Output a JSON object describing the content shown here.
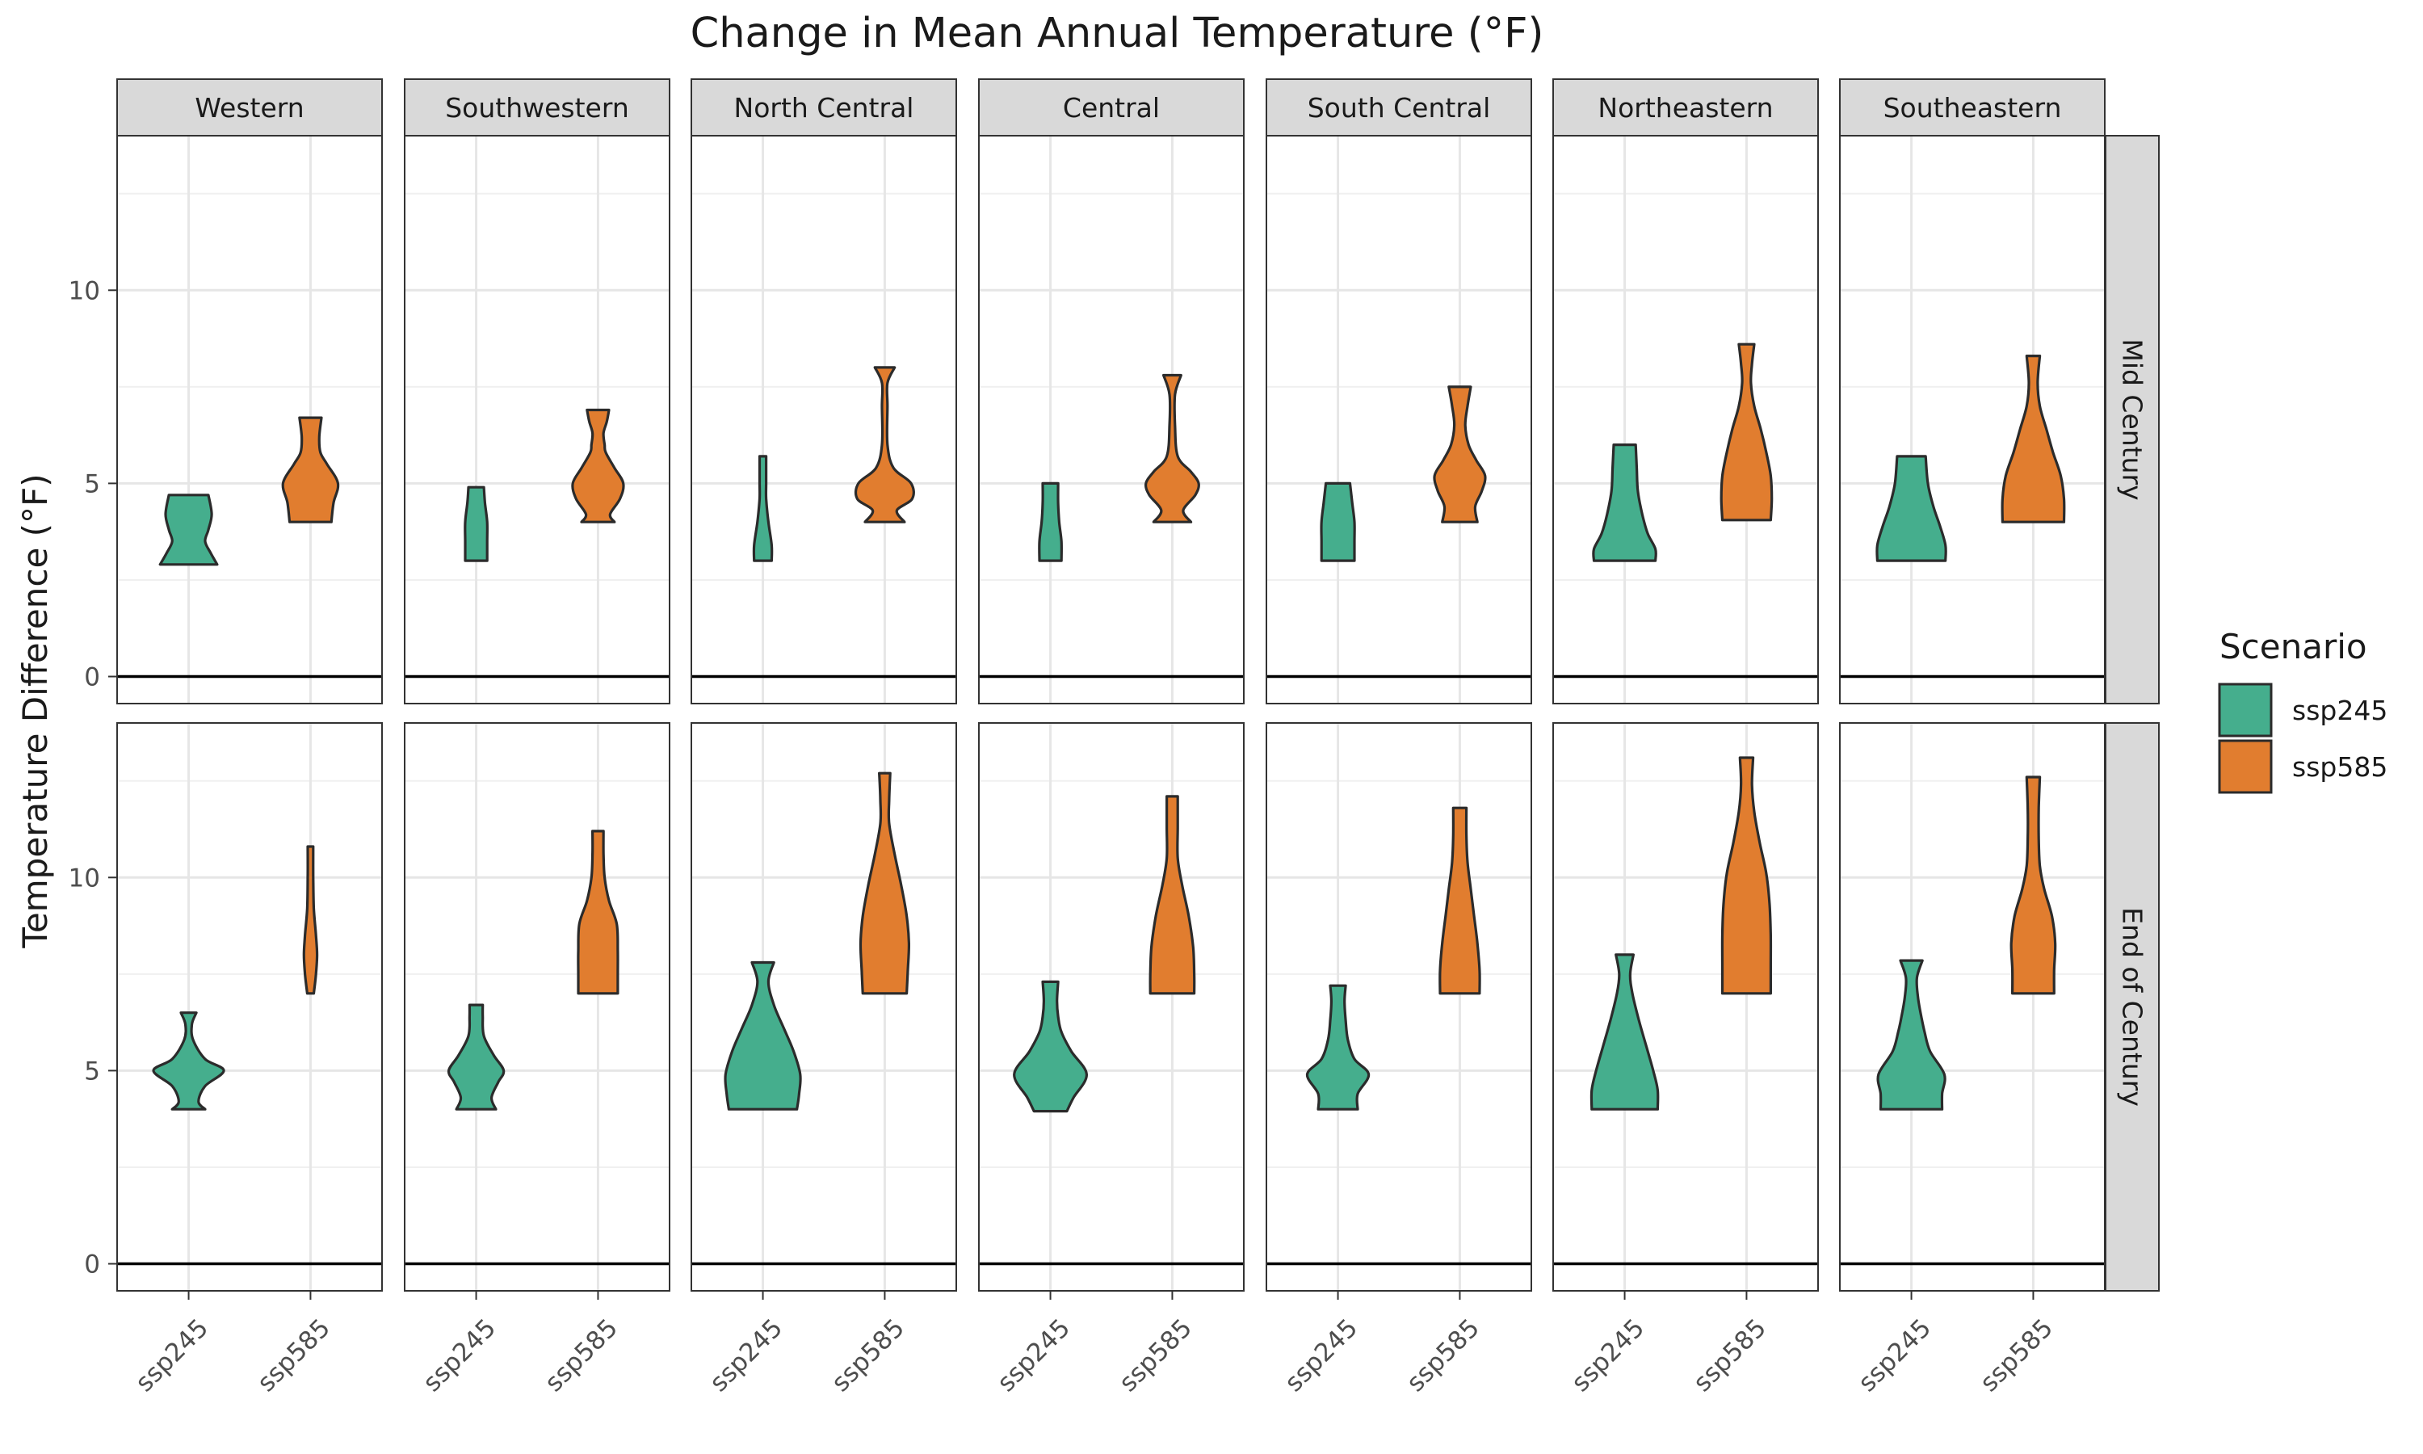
{
  "chart_data": {
    "type": "violin",
    "title": "Change in Mean Annual Temperature (°F)",
    "ylabel": "Temperature Difference (°F)",
    "xlabel": "",
    "ylim": [
      -0.7,
      14.0
    ],
    "yticks": [
      0,
      5,
      10
    ],
    "grid": true,
    "legend_placement": "right",
    "legend": {
      "title": "Scenario",
      "items": [
        {
          "label": "ssp245",
          "color": "#45ae8d"
        },
        {
          "label": "ssp585",
          "color": "#e17d2f"
        }
      ]
    },
    "x_categories": [
      "ssp245",
      "ssp585"
    ],
    "periods": [
      "Mid Century",
      "End of Century"
    ],
    "regions": [
      "Western",
      "Southwestern",
      "North Central",
      "Central",
      "South Central",
      "Northeastern",
      "Southeastern"
    ],
    "reference_line_y": 0,
    "series": [
      {
        "period": "Mid Century",
        "region": "Western",
        "ssp245": [
          [
            2.9,
            0.52
          ],
          [
            3.2,
            0.4
          ],
          [
            3.5,
            0.3
          ],
          [
            3.8,
            0.36
          ],
          [
            4.2,
            0.42
          ],
          [
            4.7,
            0.36
          ]
        ],
        "ssp585": [
          [
            4.0,
            0.38
          ],
          [
            4.5,
            0.42
          ],
          [
            5.0,
            0.5
          ],
          [
            5.5,
            0.3
          ],
          [
            5.8,
            0.18
          ],
          [
            6.2,
            0.16
          ],
          [
            6.7,
            0.2
          ]
        ]
      },
      {
        "period": "Mid Century",
        "region": "Southwestern",
        "ssp245": [
          [
            3.0,
            0.2
          ],
          [
            3.5,
            0.2
          ],
          [
            4.0,
            0.2
          ],
          [
            4.5,
            0.16
          ],
          [
            4.9,
            0.14
          ]
        ],
        "ssp585": [
          [
            4.0,
            0.3
          ],
          [
            4.2,
            0.22
          ],
          [
            4.6,
            0.4
          ],
          [
            5.0,
            0.46
          ],
          [
            5.4,
            0.3
          ],
          [
            5.8,
            0.14
          ],
          [
            6.0,
            0.12
          ],
          [
            6.3,
            0.1
          ],
          [
            6.6,
            0.16
          ],
          [
            6.9,
            0.2
          ]
        ]
      },
      {
        "period": "Mid Century",
        "region": "North Central",
        "ssp245": [
          [
            3.0,
            0.16
          ],
          [
            3.4,
            0.16
          ],
          [
            4.0,
            0.1
          ],
          [
            4.6,
            0.06
          ],
          [
            5.0,
            0.06
          ],
          [
            5.7,
            0.06
          ]
        ],
        "ssp585": [
          [
            4.0,
            0.36
          ],
          [
            4.3,
            0.22
          ],
          [
            4.6,
            0.5
          ],
          [
            5.0,
            0.48
          ],
          [
            5.4,
            0.16
          ],
          [
            6.0,
            0.05
          ],
          [
            7.0,
            0.05
          ],
          [
            7.6,
            0.05
          ],
          [
            8.0,
            0.18
          ]
        ]
      },
      {
        "period": "Mid Century",
        "region": "Central",
        "ssp245": [
          [
            3.0,
            0.2
          ],
          [
            3.5,
            0.2
          ],
          [
            4.0,
            0.16
          ],
          [
            4.5,
            0.14
          ],
          [
            5.0,
            0.14
          ]
        ],
        "ssp585": [
          [
            4.0,
            0.34
          ],
          [
            4.3,
            0.2
          ],
          [
            4.7,
            0.42
          ],
          [
            5.0,
            0.48
          ],
          [
            5.3,
            0.34
          ],
          [
            5.7,
            0.1
          ],
          [
            6.5,
            0.05
          ],
          [
            7.3,
            0.05
          ],
          [
            7.8,
            0.16
          ]
        ]
      },
      {
        "period": "Mid Century",
        "region": "South Central",
        "ssp245": [
          [
            3.0,
            0.3
          ],
          [
            3.5,
            0.3
          ],
          [
            4.0,
            0.3
          ],
          [
            4.5,
            0.26
          ],
          [
            5.0,
            0.22
          ]
        ],
        "ssp585": [
          [
            4.0,
            0.32
          ],
          [
            4.4,
            0.28
          ],
          [
            4.8,
            0.4
          ],
          [
            5.2,
            0.46
          ],
          [
            5.6,
            0.3
          ],
          [
            6.0,
            0.16
          ],
          [
            6.5,
            0.1
          ],
          [
            7.0,
            0.14
          ],
          [
            7.5,
            0.2
          ]
        ]
      },
      {
        "period": "Mid Century",
        "region": "Northeastern",
        "ssp245": [
          [
            3.0,
            0.56
          ],
          [
            3.3,
            0.56
          ],
          [
            3.7,
            0.42
          ],
          [
            4.2,
            0.32
          ],
          [
            4.8,
            0.24
          ],
          [
            5.4,
            0.22
          ],
          [
            6.0,
            0.2
          ]
        ],
        "ssp585": [
          [
            4.05,
            0.44
          ],
          [
            4.6,
            0.46
          ],
          [
            5.2,
            0.44
          ],
          [
            5.8,
            0.36
          ],
          [
            6.4,
            0.26
          ],
          [
            7.0,
            0.14
          ],
          [
            7.6,
            0.08
          ],
          [
            8.1,
            0.1
          ],
          [
            8.6,
            0.14
          ]
        ]
      },
      {
        "period": "Mid Century",
        "region": "Southeastern",
        "ssp245": [
          [
            3.0,
            0.62
          ],
          [
            3.4,
            0.62
          ],
          [
            3.9,
            0.52
          ],
          [
            4.4,
            0.4
          ],
          [
            5.0,
            0.3
          ],
          [
            5.7,
            0.26
          ]
        ],
        "ssp585": [
          [
            4.0,
            0.56
          ],
          [
            4.6,
            0.56
          ],
          [
            5.2,
            0.5
          ],
          [
            5.8,
            0.36
          ],
          [
            6.4,
            0.24
          ],
          [
            7.0,
            0.12
          ],
          [
            7.6,
            0.08
          ],
          [
            8.3,
            0.12
          ]
        ]
      },
      {
        "period": "End of Century",
        "region": "Western",
        "ssp245": [
          [
            4.0,
            0.3
          ],
          [
            4.2,
            0.18
          ],
          [
            4.6,
            0.3
          ],
          [
            5.0,
            0.64
          ],
          [
            5.3,
            0.3
          ],
          [
            5.8,
            0.08
          ],
          [
            6.2,
            0.06
          ],
          [
            6.5,
            0.14
          ]
        ],
        "ssp585": [
          [
            7.0,
            0.06
          ],
          [
            7.5,
            0.1
          ],
          [
            8.0,
            0.12
          ],
          [
            8.5,
            0.1
          ],
          [
            9.2,
            0.06
          ],
          [
            10.0,
            0.05
          ],
          [
            10.8,
            0.05
          ]
        ]
      },
      {
        "period": "End of Century",
        "region": "Southwestern",
        "ssp245": [
          [
            4.0,
            0.36
          ],
          [
            4.3,
            0.28
          ],
          [
            4.7,
            0.4
          ],
          [
            5.0,
            0.5
          ],
          [
            5.4,
            0.32
          ],
          [
            5.9,
            0.14
          ],
          [
            6.4,
            0.12
          ],
          [
            6.7,
            0.12
          ]
        ],
        "ssp585": [
          [
            7.0,
            0.36
          ],
          [
            7.5,
            0.36
          ],
          [
            8.1,
            0.36
          ],
          [
            8.8,
            0.34
          ],
          [
            9.4,
            0.2
          ],
          [
            10.0,
            0.12
          ],
          [
            10.6,
            0.1
          ],
          [
            11.2,
            0.1
          ]
        ]
      },
      {
        "period": "End of Century",
        "region": "North Central",
        "ssp245": [
          [
            4.0,
            0.62
          ],
          [
            4.4,
            0.66
          ],
          [
            4.9,
            0.68
          ],
          [
            5.5,
            0.56
          ],
          [
            6.1,
            0.38
          ],
          [
            6.7,
            0.2
          ],
          [
            7.3,
            0.1
          ],
          [
            7.8,
            0.2
          ]
        ],
        "ssp585": [
          [
            7.0,
            0.4
          ],
          [
            7.6,
            0.42
          ],
          [
            8.3,
            0.44
          ],
          [
            9.0,
            0.4
          ],
          [
            9.8,
            0.3
          ],
          [
            10.6,
            0.18
          ],
          [
            11.4,
            0.08
          ],
          [
            12.0,
            0.08
          ],
          [
            12.7,
            0.1
          ]
        ]
      },
      {
        "period": "End of Century",
        "region": "Central",
        "ssp245": [
          [
            3.95,
            0.3
          ],
          [
            4.3,
            0.42
          ],
          [
            4.9,
            0.66
          ],
          [
            5.5,
            0.38
          ],
          [
            6.0,
            0.2
          ],
          [
            6.4,
            0.14
          ],
          [
            6.8,
            0.12
          ],
          [
            7.3,
            0.14
          ]
        ],
        "ssp585": [
          [
            7.0,
            0.4
          ],
          [
            7.5,
            0.4
          ],
          [
            8.2,
            0.38
          ],
          [
            9.0,
            0.3
          ],
          [
            9.8,
            0.18
          ],
          [
            10.5,
            0.1
          ],
          [
            11.3,
            0.1
          ],
          [
            12.1,
            0.1
          ]
        ]
      },
      {
        "period": "End of Century",
        "region": "South Central",
        "ssp245": [
          [
            4.0,
            0.36
          ],
          [
            4.4,
            0.36
          ],
          [
            4.9,
            0.56
          ],
          [
            5.3,
            0.3
          ],
          [
            5.8,
            0.18
          ],
          [
            6.3,
            0.14
          ],
          [
            6.8,
            0.12
          ],
          [
            7.2,
            0.14
          ]
        ],
        "ssp585": [
          [
            7.0,
            0.36
          ],
          [
            7.6,
            0.36
          ],
          [
            8.3,
            0.32
          ],
          [
            9.0,
            0.26
          ],
          [
            9.7,
            0.2
          ],
          [
            10.4,
            0.14
          ],
          [
            11.1,
            0.12
          ],
          [
            11.8,
            0.12
          ]
        ]
      },
      {
        "period": "End of Century",
        "region": "Northeastern",
        "ssp245": [
          [
            4.0,
            0.6
          ],
          [
            4.5,
            0.6
          ],
          [
            5.0,
            0.52
          ],
          [
            5.6,
            0.4
          ],
          [
            6.3,
            0.26
          ],
          [
            7.0,
            0.14
          ],
          [
            7.5,
            0.1
          ],
          [
            8.0,
            0.16
          ]
        ],
        "ssp585": [
          [
            7.0,
            0.44
          ],
          [
            7.7,
            0.44
          ],
          [
            8.5,
            0.44
          ],
          [
            9.3,
            0.42
          ],
          [
            10.1,
            0.36
          ],
          [
            10.9,
            0.24
          ],
          [
            11.7,
            0.14
          ],
          [
            12.4,
            0.1
          ],
          [
            13.1,
            0.12
          ]
        ]
      },
      {
        "period": "End of Century",
        "region": "Southeastern",
        "ssp245": [
          [
            4.0,
            0.56
          ],
          [
            4.4,
            0.56
          ],
          [
            4.9,
            0.6
          ],
          [
            5.5,
            0.34
          ],
          [
            6.0,
            0.24
          ],
          [
            6.4,
            0.18
          ],
          [
            6.9,
            0.12
          ],
          [
            7.4,
            0.1
          ],
          [
            7.85,
            0.2
          ]
        ],
        "ssp585": [
          [
            7.0,
            0.38
          ],
          [
            7.6,
            0.38
          ],
          [
            8.3,
            0.4
          ],
          [
            9.0,
            0.34
          ],
          [
            9.7,
            0.2
          ],
          [
            10.3,
            0.12
          ],
          [
            11.0,
            0.1
          ],
          [
            11.8,
            0.1
          ],
          [
            12.6,
            0.12
          ]
        ]
      }
    ]
  }
}
